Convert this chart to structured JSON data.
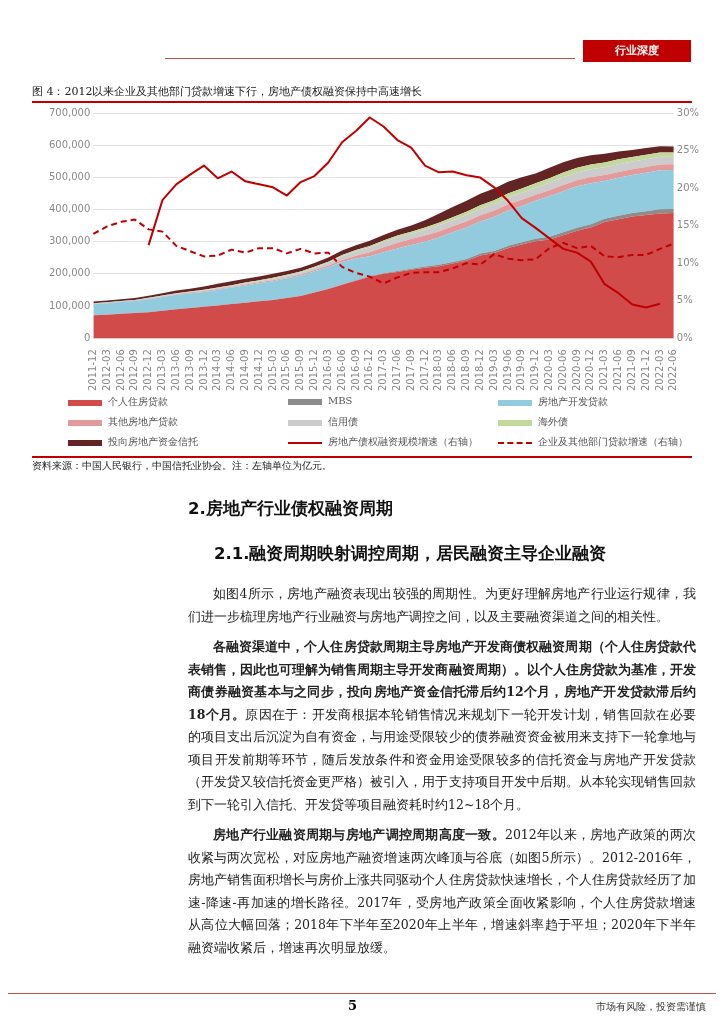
{
  "chart_data": {
    "type": "area",
    "title": "图 4：2012以来企业及其他部门贷款增速下行，房地产债权融资保持中高速增长",
    "categories": [
      "2011-12",
      "2012-03",
      "2012-06",
      "2012-09",
      "2012-12",
      "2013-03",
      "2013-06",
      "2013-09",
      "2013-12",
      "2014-03",
      "2014-06",
      "2014-09",
      "2014-12",
      "2015-03",
      "2015-06",
      "2015-09",
      "2015-12",
      "2016-03",
      "2016-06",
      "2016-09",
      "2016-12",
      "2017-03",
      "2017-06",
      "2017-09",
      "2017-12",
      "2018-03",
      "2018-06",
      "2018-09",
      "2018-12",
      "2019-03",
      "2019-06",
      "2019-09",
      "2019-12",
      "2020-03",
      "2020-06",
      "2020-09",
      "2020-12",
      "2021-03",
      "2021-06",
      "2021-09",
      "2021-12",
      "2022-03",
      "2022-06"
    ],
    "stacked": true,
    "series": [
      {
        "name": "个人住房贷款",
        "color": "#d24b4b",
        "values": [
          71000,
          73000,
          76000,
          78000,
          81000,
          85000,
          90000,
          94000,
          98000,
          102000,
          106000,
          110000,
          115000,
          119000,
          125000,
          131000,
          142000,
          153000,
          166000,
          179000,
          191000,
          200000,
          206000,
          213000,
          219000,
          224000,
          232000,
          241000,
          257000,
          265000,
          280000,
          291000,
          301000,
          307000,
          320000,
          334000,
          344000,
          361000,
          370000,
          378000,
          383000,
          388000,
          389000
        ]
      },
      {
        "name": "MBS",
        "color": "#8c8c8c",
        "values": [
          0,
          0,
          0,
          0,
          0,
          0,
          0,
          0,
          0,
          0,
          0,
          0,
          0,
          0,
          0,
          0,
          0,
          1000,
          1000,
          1000,
          2000,
          2000,
          3000,
          3000,
          4000,
          4000,
          5000,
          5000,
          6000,
          6000,
          7000,
          7000,
          8000,
          8000,
          9000,
          9000,
          10000,
          10000,
          11000,
          11000,
          12000,
          13000,
          13000
        ]
      },
      {
        "name": "房地产开发贷款",
        "color": "#92cbdd",
        "values": [
          35000,
          36000,
          37000,
          38000,
          40000,
          43000,
          45000,
          46000,
          46000,
          49000,
          52000,
          54000,
          56000,
          58000,
          61000,
          63000,
          66000,
          67000,
          70000,
          68000,
          62000,
          65000,
          70000,
          74000,
          77000,
          85000,
          92000,
          98000,
          100000,
          106000,
          110000,
          113000,
          118000,
          126000,
          128000,
          129000,
          128000,
          118000,
          118000,
          118000,
          119000,
          121000,
          121000
        ]
      },
      {
        "name": "其他房地产贷款",
        "color": "#e39a9a",
        "values": [
          1000,
          1000,
          1000,
          1000,
          2000,
          2000,
          2000,
          2000,
          2000,
          2000,
          2000,
          3000,
          3000,
          3000,
          3000,
          4000,
          4000,
          5000,
          6000,
          8000,
          12000,
          16000,
          17000,
          18000,
          19000,
          19000,
          19000,
          19000,
          19000,
          19000,
          19000,
          19000,
          19000,
          19000,
          19000,
          19000,
          19000,
          18000,
          18000,
          18000,
          18000,
          18000,
          18000
        ]
      },
      {
        "name": "信用债",
        "color": "#cccccc",
        "values": [
          1000,
          1000,
          1000,
          1000,
          2000,
          2000,
          2000,
          2000,
          3000,
          3000,
          3000,
          4000,
          4000,
          5000,
          5000,
          6000,
          7000,
          9000,
          12000,
          14000,
          15000,
          16000,
          17000,
          17000,
          18000,
          19000,
          19000,
          20000,
          20000,
          21000,
          21000,
          22000,
          22000,
          23000,
          24000,
          24000,
          24000,
          24000,
          24000,
          24000,
          24000,
          24000,
          23000
        ]
      },
      {
        "name": "海外债",
        "color": "#c4d89b",
        "values": [
          1000,
          1000,
          1000,
          1000,
          1000,
          1000,
          1000,
          1000,
          2000,
          2000,
          2000,
          2000,
          2000,
          3000,
          3000,
          3000,
          3000,
          3000,
          4000,
          4000,
          5000,
          5000,
          6000,
          6000,
          7000,
          8000,
          9000,
          10000,
          11000,
          12000,
          13000,
          13000,
          14000,
          14000,
          15000,
          15000,
          15000,
          15000,
          15000,
          14000,
          14000,
          13000,
          13000
        ]
      },
      {
        "name": "投向房地产资金信托",
        "color": "#632424",
        "values": [
          5000,
          5000,
          5000,
          6000,
          6000,
          7000,
          8000,
          9000,
          10000,
          11000,
          12000,
          12000,
          12000,
          12000,
          12000,
          12000,
          12000,
          13000,
          14000,
          15000,
          16000,
          17000,
          18000,
          19000,
          23000,
          28000,
          32000,
          34000,
          36000,
          36000,
          36000,
          35000,
          30000,
          33000,
          32000,
          30000,
          29000,
          27000,
          24000,
          22000,
          21000,
          20000,
          19000
        ]
      },
      {
        "name": "房地产债权融资规模增速（右轴）",
        "type": "line",
        "axis": "y2",
        "line_style": "solid",
        "color": "#c00000",
        "values": [
          null,
          null,
          null,
          null,
          12.4,
          18.4,
          20.5,
          21.8,
          23.0,
          21.3,
          22.2,
          20.9,
          20.5,
          20.1,
          19.0,
          20.8,
          21.6,
          23.4,
          26.1,
          27.6,
          29.4,
          28.2,
          26.4,
          25.4,
          23.0,
          22.1,
          22.2,
          21.7,
          21.4,
          20.1,
          18.3,
          16.0,
          14.7,
          13.3,
          11.9,
          11.4,
          10.2,
          7.2,
          6.0,
          4.5,
          4.1,
          4.6,
          null
        ]
      },
      {
        "name": "企业及其他部门贷款增速（右轴）",
        "type": "line",
        "axis": "y2",
        "line_style": "dashed",
        "color": "#c00000",
        "values": [
          13.9,
          14.9,
          15.5,
          15.8,
          14.5,
          14.2,
          12.3,
          11.6,
          10.9,
          11.0,
          11.8,
          11.4,
          12.0,
          12.0,
          11.3,
          11.9,
          11.3,
          11.4,
          9.5,
          8.7,
          8.2,
          7.3,
          8.1,
          8.7,
          8.8,
          8.8,
          9.3,
          10.0,
          9.8,
          11.2,
          10.6,
          10.4,
          10.5,
          12.0,
          12.7,
          12.0,
          12.3,
          10.9,
          10.8,
          11.1,
          11.1,
          11.9,
          12.6
        ]
      }
    ],
    "ylim": [
      0,
      700000
    ],
    "yticks": [
      {
        "value": 0,
        "label": "0"
      },
      {
        "value": 100000,
        "label": "100,000"
      },
      {
        "value": 200000,
        "label": "200,000"
      },
      {
        "value": 300000,
        "label": "300,000"
      },
      {
        "value": 400000,
        "label": "400,000"
      },
      {
        "value": 500000,
        "label": "500,000"
      },
      {
        "value": 600000,
        "label": "600,000"
      },
      {
        "value": 700000,
        "label": "700,000"
      }
    ],
    "y2lim": [
      0,
      30
    ],
    "y2ticks": [
      {
        "value": 0,
        "label": "0%"
      },
      {
        "value": 5,
        "label": "5%"
      },
      {
        "value": 10,
        "label": "10%"
      },
      {
        "value": 15,
        "label": "15%"
      },
      {
        "value": 20,
        "label": "20%"
      },
      {
        "value": 25,
        "label": "25%"
      },
      {
        "value": 30,
        "label": "30%"
      }
    ],
    "grid": "y",
    "legend": "bottom",
    "annotations": [
      "行业深度",
      "资料来源：中国人民银行，中国信托业协会。注：左轴单位为亿元。",
      "2.房地产行业债权融资周期",
      "2.1.融资周期映射调控周期，居民融资主导企业融资",
      "如图4所示，房地产融资表现出较强的周期性。为更好理解房地产行业运行规律，我们进一步梳理房地产行业融资与房地产调控之间，以及主要融资渠道之间的相关性。",
      "各融资渠道中，个人住房贷款周期主导房地产开发商债权融资周期（个人住房贷款代表销售，因此也可理解为销售周期主导开发商融资周期）。以个人住房贷款为基准，开发商债券融资基本与之同步，投向房地产资金信托滞后约12个月，房地产开发贷款滞后约18个月。",
      "原因在于：开发商根据本轮销售情况来规划下一轮开发计划，销售回款在必要的项目支出后沉淀为自有资金，与用途受限较少的债券融资资金被用来支持下一轮拿地与项目开发前期等环节，随后发放条件和资金用途受限较多的信托资金与房地产开发贷款（开发贷又较信托资金更严格）被引入，用于支持项目开发中后期。从本轮实现销售回款到下一轮引入信托、开发贷等项目融资耗时约12~18个月。",
      "房地产行业融资周期与房地产调控周期高度一致。",
      "2012年以来，房地产政策的两次收紧与两次宽松，对应房地产融资增速两次峰顶与谷底（如图5所示）。2012-2016年，房地产销售面积增长与房价上涨共同驱动个人住房贷款快速增长，个人住房贷款经历了加速-降速-再加速的增长路径。2017年，受房地产政策全面收紧影响，个人住房贷款增速从高位大幅回落；2018年下半年至2020年上半年，增速斜率趋于平坦；2020年下半年融资端收紧后，增速再次明显放缓。",
      "5",
      "市场有风险，投资需谨慎"
    ]
  }
}
